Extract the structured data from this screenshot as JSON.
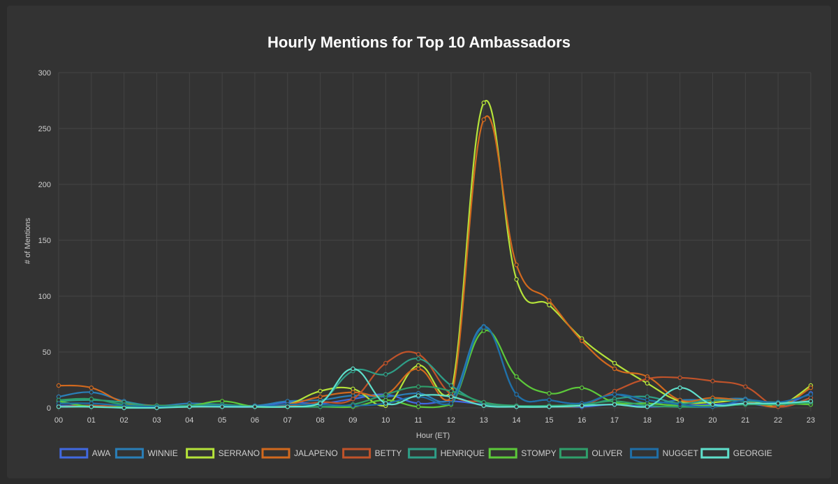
{
  "chart_data": {
    "type": "line",
    "title": "Hourly Mentions for Top 10 Ambassadors",
    "xlabel": "Hour (ET)",
    "ylabel": "# of Mentions",
    "ylim": [
      0,
      300
    ],
    "yticks": [
      0,
      50,
      100,
      150,
      200,
      250,
      300
    ],
    "grid": true,
    "legend_position": "bottom",
    "categories": [
      "00",
      "01",
      "02",
      "03",
      "04",
      "05",
      "06",
      "07",
      "08",
      "09",
      "10",
      "11",
      "12",
      "13",
      "14",
      "15",
      "16",
      "17",
      "18",
      "19",
      "20",
      "21",
      "22",
      "23"
    ],
    "series": [
      {
        "name": "AWA",
        "color": "#4169e1",
        "values": [
          2,
          2,
          1,
          1,
          1,
          1,
          1,
          5,
          4,
          8,
          12,
          4,
          6,
          3,
          1,
          1,
          1,
          3,
          1,
          2,
          3,
          4,
          2,
          13
        ]
      },
      {
        "name": "WINNIE",
        "color": "#2a7fb8",
        "values": [
          10,
          14,
          6,
          2,
          4,
          3,
          2,
          6,
          7,
          11,
          10,
          13,
          8,
          73,
          12,
          7,
          4,
          12,
          4,
          7,
          7,
          8,
          1,
          9
        ]
      },
      {
        "name": "SERRANO",
        "color": "#b5e33a",
        "values": [
          1,
          2,
          1,
          1,
          1,
          2,
          1,
          3,
          15,
          17,
          2,
          38,
          14,
          273,
          115,
          92,
          62,
          40,
          22,
          6,
          5,
          7,
          2,
          20
        ]
      },
      {
        "name": "JALAPENO",
        "color": "#d2691e",
        "values": [
          20,
          18,
          5,
          2,
          2,
          2,
          1,
          3,
          10,
          14,
          12,
          35,
          8,
          258,
          128,
          96,
          60,
          35,
          28,
          7,
          9,
          6,
          1,
          18
        ]
      },
      {
        "name": "BETTY",
        "color": "#c0532a",
        "values": [
          1,
          2,
          1,
          1,
          1,
          1,
          1,
          2,
          5,
          8,
          40,
          48,
          12,
          5,
          1,
          1,
          2,
          15,
          26,
          27,
          24,
          19,
          1,
          9
        ]
      },
      {
        "name": "HENRIQUE",
        "color": "#2e9e87",
        "values": [
          6,
          7,
          5,
          1,
          2,
          1,
          1,
          1,
          5,
          33,
          30,
          44,
          20,
          4,
          1,
          1,
          2,
          8,
          10,
          4,
          7,
          6,
          5,
          4
        ]
      },
      {
        "name": "STOMPY",
        "color": "#5cc93a",
        "values": [
          6,
          1,
          1,
          2,
          2,
          6,
          1,
          1,
          1,
          1,
          7,
          1,
          3,
          69,
          28,
          13,
          18,
          5,
          4,
          2,
          2,
          3,
          4,
          3
        ]
      },
      {
        "name": "OLIVER",
        "color": "#2f9f6b",
        "values": [
          7,
          8,
          3,
          2,
          2,
          3,
          1,
          1,
          1,
          3,
          12,
          19,
          15,
          5,
          2,
          2,
          3,
          6,
          2,
          1,
          1,
          3,
          3,
          5
        ]
      },
      {
        "name": "NUGGET",
        "color": "#1f6fa8",
        "values": [
          4,
          4,
          2,
          1,
          1,
          2,
          1,
          3,
          3,
          2,
          4,
          10,
          4,
          72,
          12,
          7,
          4,
          12,
          7,
          3,
          1,
          7,
          5,
          12
        ]
      },
      {
        "name": "GEORGIE",
        "color": "#5fe0cc",
        "values": [
          1,
          1,
          0,
          0,
          1,
          1,
          1,
          1,
          4,
          35,
          4,
          11,
          10,
          2,
          1,
          1,
          2,
          3,
          1,
          18,
          3,
          4,
          4,
          6
        ]
      }
    ]
  }
}
